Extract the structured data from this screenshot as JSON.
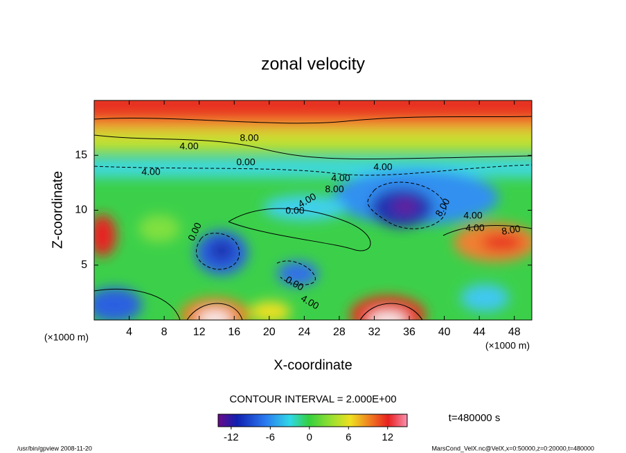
{
  "chart_data": {
    "type": "contour",
    "title": "zonal velocity",
    "x_label": "X-coordinate",
    "y_label": "Z-coordinate",
    "x_unit_left": "(×1000 m)",
    "x_unit_right": "(×1000 m)",
    "xlim": [
      0,
      50
    ],
    "xticks": [
      4,
      8,
      12,
      16,
      20,
      24,
      28,
      32,
      36,
      40,
      44,
      48
    ],
    "ylim": [
      0,
      20
    ],
    "yticks": [
      5,
      10,
      15
    ],
    "contour_interval_text": "CONTOUR INTERVAL = 2.000E+00",
    "time_text": "t=480000 s",
    "colorbar": {
      "lim": [
        -14,
        15
      ],
      "ticks": [
        -12,
        -6,
        0,
        6,
        12
      ]
    },
    "contour_labels": [
      {
        "value": 8,
        "label": "8.00"
      },
      {
        "value": 4,
        "label": "4.00"
      },
      {
        "value": 0,
        "label": "0.00"
      },
      {
        "value": 4,
        "label": "4.00"
      },
      {
        "value": 4,
        "label": "4.00"
      },
      {
        "value": 4,
        "label": "4.00"
      },
      {
        "value": 8,
        "label": "8.00"
      },
      {
        "value": 4,
        "label": "4.00"
      },
      {
        "value": 0,
        "label": "0.00"
      },
      {
        "value": 8,
        "label": "8.00"
      },
      {
        "value": 4,
        "label": "4.00"
      },
      {
        "value": 4,
        "label": "4.00"
      },
      {
        "value": 8,
        "label": "8.00"
      },
      {
        "value": 0,
        "label": "0.00"
      },
      {
        "value": 0,
        "label": "0.00"
      },
      {
        "value": 4,
        "label": "4.00"
      }
    ],
    "footer_left": "/usr/bin/gpview  2008-11-20",
    "footer_right": "MarsCond_VelX.nc@VelX,x=0:50000,z=0:20000,t=480000"
  }
}
